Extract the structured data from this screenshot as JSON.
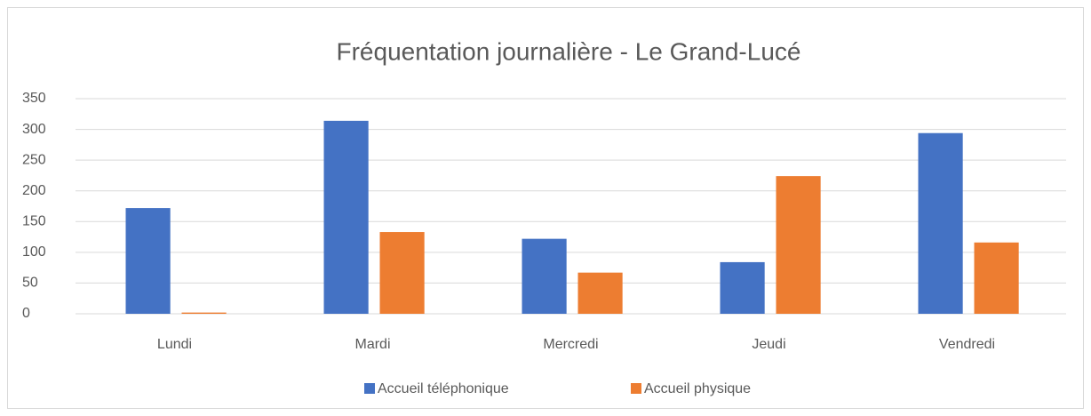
{
  "chart_data": {
    "type": "bar",
    "title": "Fréquentation journalière - Le Grand-Lucé",
    "categories": [
      "Lundi",
      "Mardi",
      "Mercredi",
      "Jeudi",
      "Vendredi"
    ],
    "series": [
      {
        "name": "Accueil téléphonique",
        "color": "#4472c4",
        "values": [
          172,
          314,
          122,
          84,
          294
        ]
      },
      {
        "name": "Accueil physique",
        "color": "#ed7d31",
        "values": [
          2,
          133,
          67,
          224,
          116
        ]
      }
    ],
    "ylim": [
      0,
      350
    ],
    "yticks": [
      0,
      50,
      100,
      150,
      200,
      250,
      300,
      350
    ],
    "grid": true,
    "legend": "bottom"
  }
}
